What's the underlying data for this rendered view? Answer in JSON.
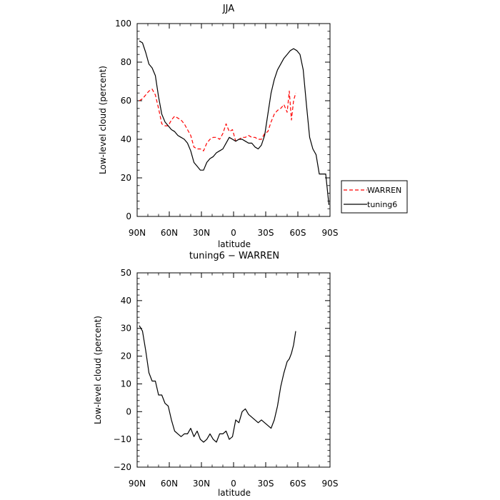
{
  "chart_data": [
    {
      "type": "line",
      "title": "JJA",
      "xlabel": "latitude",
      "ylabel": "Low-level cloud (percent)",
      "xlim": [
        90,
        -90
      ],
      "ylim": [
        0,
        100
      ],
      "x_ticks": [
        {
          "value": 90,
          "label": "90N"
        },
        {
          "value": 60,
          "label": "60N"
        },
        {
          "value": 30,
          "label": "30N"
        },
        {
          "value": 0,
          "label": "0"
        },
        {
          "value": -30,
          "label": "30S"
        },
        {
          "value": -60,
          "label": "60S"
        },
        {
          "value": -90,
          "label": "90S"
        }
      ],
      "y_ticks": [
        0,
        20,
        40,
        60,
        80,
        100
      ],
      "legend_placement": "right",
      "series": [
        {
          "name": "WARREN",
          "color": "#ff0000",
          "dash": "dashed",
          "x": [
            88,
            85,
            82,
            79,
            76,
            73,
            70,
            67,
            64,
            61,
            58,
            55,
            52,
            49,
            46,
            43,
            40,
            37,
            34,
            31,
            28,
            25,
            22,
            19,
            16,
            13,
            10,
            7,
            4,
            1,
            -2,
            -5,
            -8,
            -11,
            -14,
            -17,
            -20,
            -23,
            -26,
            -29,
            -32,
            -35,
            -38,
            -41,
            -44,
            -47,
            -50,
            -52,
            -54,
            -56,
            -58
          ],
          "values": [
            60,
            61,
            63,
            65,
            66,
            63,
            56,
            48,
            47,
            47,
            50,
            52,
            51,
            50,
            48,
            45,
            42,
            36,
            35,
            35,
            34,
            38,
            40,
            41,
            41,
            40,
            43,
            48,
            44,
            45,
            39,
            40,
            41,
            41,
            42,
            41,
            41,
            40,
            40,
            43,
            44,
            49,
            53,
            55,
            56,
            58,
            54,
            65,
            50,
            60,
            64
          ]
        },
        {
          "name": "tuning6",
          "color": "#000000",
          "dash": "solid",
          "x": [
            88,
            85,
            82,
            79,
            76,
            73,
            70,
            67,
            64,
            61,
            58,
            55,
            52,
            49,
            46,
            43,
            40,
            37,
            34,
            31,
            28,
            25,
            22,
            19,
            16,
            13,
            10,
            7,
            4,
            1,
            -2,
            -5,
            -8,
            -11,
            -14,
            -17,
            -20,
            -23,
            -26,
            -29,
            -32,
            -35,
            -38,
            -41,
            -44,
            -47,
            -50,
            -53,
            -56,
            -59,
            -62,
            -65,
            -68,
            -71,
            -74,
            -77,
            -80,
            -83,
            -86,
            -89
          ],
          "values": [
            91,
            90,
            85,
            79,
            77,
            73,
            62,
            53,
            49,
            47,
            45,
            44,
            42,
            41,
            40,
            38,
            34,
            28,
            26,
            24,
            24,
            28,
            30,
            31,
            33,
            34,
            35,
            38,
            41,
            40,
            39,
            40,
            40,
            39,
            38,
            38,
            36,
            35,
            37,
            42,
            53,
            64,
            71,
            76,
            79,
            82,
            84,
            86,
            87,
            86,
            84,
            76,
            58,
            41,
            35,
            32,
            22,
            22,
            22,
            6
          ]
        }
      ]
    },
    {
      "type": "line",
      "title": "tuning6 − WARREN",
      "xlabel": "latitude",
      "ylabel": "Low-level cloud (percent)",
      "xlim": [
        90,
        -90
      ],
      "ylim": [
        -20,
        50
      ],
      "x_ticks": [
        {
          "value": 90,
          "label": "90N"
        },
        {
          "value": 60,
          "label": "60N"
        },
        {
          "value": 30,
          "label": "30N"
        },
        {
          "value": 0,
          "label": "0"
        },
        {
          "value": -30,
          "label": "30S"
        },
        {
          "value": -60,
          "label": "60S"
        },
        {
          "value": -90,
          "label": "90S"
        }
      ],
      "y_ticks": [
        -20,
        -10,
        0,
        10,
        20,
        30,
        40,
        50
      ],
      "series": [
        {
          "color": "#000000",
          "dash": "solid",
          "x": [
            88,
            85,
            82,
            79,
            76,
            73,
            70,
            67,
            64,
            61,
            58,
            55,
            52,
            49,
            46,
            43,
            40,
            37,
            34,
            31,
            28,
            25,
            22,
            19,
            16,
            13,
            10,
            7,
            4,
            1,
            -2,
            -5,
            -8,
            -11,
            -14,
            -17,
            -20,
            -23,
            -26,
            -29,
            -32,
            -35,
            -38,
            -41,
            -44,
            -47,
            -50,
            -52,
            -54,
            -56,
            -58
          ],
          "values": [
            31,
            29,
            22,
            14,
            11,
            11,
            6,
            6,
            3,
            2,
            -3,
            -7,
            -8,
            -9,
            -8,
            -8,
            -6,
            -9,
            -7,
            -10,
            -11,
            -10,
            -8,
            -10,
            -11,
            -8,
            -8,
            -7,
            -10,
            -9,
            -3,
            -4,
            0,
            1,
            -1,
            -2,
            -3,
            -4,
            -3,
            -4,
            -5,
            -6,
            -3,
            2,
            9,
            14,
            18,
            19,
            21,
            24,
            29
          ]
        }
      ]
    }
  ],
  "legend": {
    "items": [
      {
        "label": "WARREN",
        "color": "#ff0000",
        "dash": "dashed"
      },
      {
        "label": "tuning6",
        "color": "#000000",
        "dash": "solid"
      }
    ]
  }
}
